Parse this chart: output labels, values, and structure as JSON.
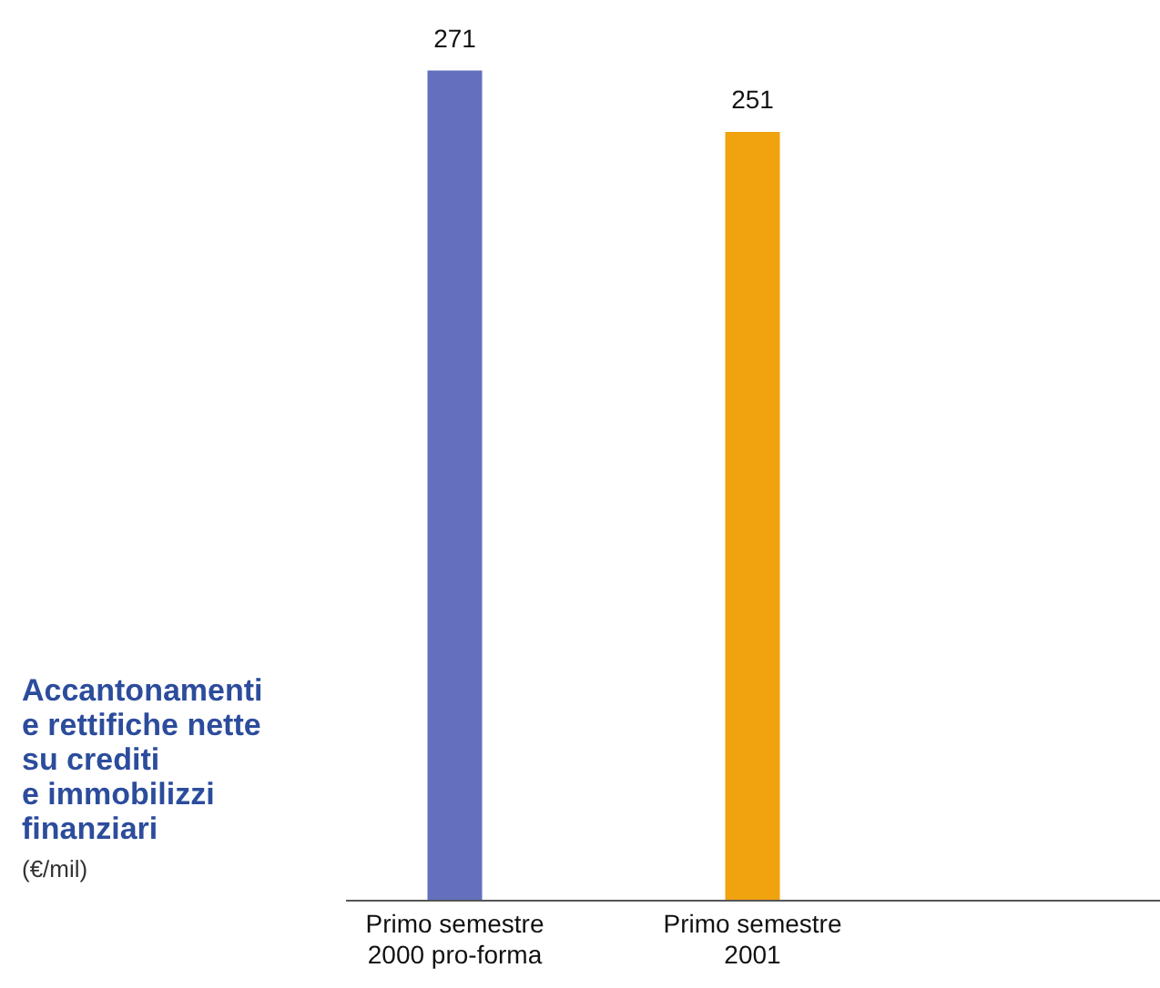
{
  "chart_data": {
    "type": "bar",
    "title": "Accantonamenti\ne rettifiche nette\nsu crediti\ne immobilizzi\nfinanziari",
    "subtitle": "(€/mil)",
    "categories": [
      "Primo semestre\n2000 pro-forma",
      "Primo semestre\n2001"
    ],
    "values": [
      271,
      251
    ],
    "colors": [
      "#6470bd",
      "#f0a20f"
    ],
    "data_labels": true,
    "grid": false
  }
}
